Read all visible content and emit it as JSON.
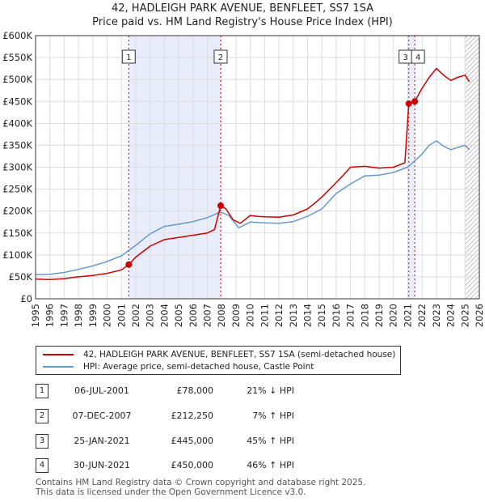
{
  "title_line1": "42, HADLEIGH PARK AVENUE, BENFLEET, SS7 1SA",
  "title_line2": "Price paid vs. HM Land Registry's House Price Index (HPI)",
  "colors": {
    "price_paid": "#cc0000",
    "hpi": "#6699cc",
    "shade": "#e8ecfb",
    "grid": "#dddddd",
    "marker_line": "#cc0000"
  },
  "legend": {
    "price_paid": "42, HADLEIGH PARK AVENUE, BENFLEET, SS7 1SA (semi-detached house)",
    "hpi": "HPI: Average price, semi-detached house, Castle Point"
  },
  "transactions": [
    {
      "num": "1",
      "date": "06-JUL-2001",
      "price": "£78,000",
      "hpi": "21% ↓ HPI"
    },
    {
      "num": "2",
      "date": "07-DEC-2007",
      "price": "£212,250",
      "hpi": "7% ↑ HPI"
    },
    {
      "num": "3",
      "date": "25-JAN-2021",
      "price": "£445,000",
      "hpi": "45% ↑ HPI"
    },
    {
      "num": "4",
      "date": "30-JUN-2021",
      "price": "£450,000",
      "hpi": "46% ↑ HPI"
    }
  ],
  "footer_line1": "Contains HM Land Registry data © Crown copyright and database right 2025.",
  "footer_line2": "This data is licensed under the Open Government Licence v3.0.",
  "chart_data": {
    "type": "line",
    "title": "42, HADLEIGH PARK AVENUE, BENFLEET, SS7 1SA — Price paid vs. HM Land Registry's House Price Index (HPI)",
    "xlim": [
      1995,
      2026
    ],
    "ylim": [
      0,
      600000
    ],
    "x_ticks": [
      1995,
      1996,
      1997,
      1998,
      1999,
      2000,
      2001,
      2002,
      2003,
      2004,
      2005,
      2006,
      2007,
      2008,
      2009,
      2010,
      2011,
      2012,
      2013,
      2014,
      2015,
      2016,
      2017,
      2018,
      2019,
      2020,
      2021,
      2022,
      2023,
      2024,
      2025,
      2026
    ],
    "y_ticks": [
      0,
      50000,
      100000,
      150000,
      200000,
      250000,
      300000,
      350000,
      400000,
      450000,
      500000,
      550000,
      600000
    ],
    "y_tick_labels": [
      "£0",
      "£50K",
      "£100K",
      "£150K",
      "£200K",
      "£250K",
      "£300K",
      "£350K",
      "£400K",
      "£450K",
      "£500K",
      "£550K",
      "£600K"
    ],
    "shaded_ranges": [
      [
        2001.51,
        2007.93
      ],
      [
        2021.07,
        2021.49
      ]
    ],
    "hatched_from": 2025.0,
    "markers": [
      {
        "label": "1",
        "x": 2001.51,
        "y": 78000
      },
      {
        "label": "2",
        "x": 2007.93,
        "y": 212250
      },
      {
        "label": "3",
        "x": 2021.07,
        "y": 445000
      },
      {
        "label": "4",
        "x": 2021.49,
        "y": 450000
      }
    ],
    "series": [
      {
        "name": "42, HADLEIGH PARK AVENUE, BENFLEET, SS7 1SA (semi-detached house)",
        "color": "#cc0000",
        "x": [
          1995,
          1996,
          1997,
          1998,
          1999,
          2000,
          2001,
          2001.51,
          2002,
          2003,
          2004,
          2005,
          2006,
          2007,
          2007.5,
          2007.93,
          2008.3,
          2008.8,
          2009.3,
          2010,
          2010.5,
          2011,
          2012,
          2013,
          2014,
          2014.5,
          2015,
          2016,
          2016.5,
          2017,
          2018,
          2019,
          2020,
          2020.8,
          2021.07,
          2021.49,
          2022,
          2022.5,
          2023,
          2023.5,
          2024,
          2024.5,
          2025,
          2025.3
        ],
        "y": [
          45000,
          44000,
          46000,
          50000,
          53000,
          58000,
          66000,
          78000,
          95000,
          120000,
          135000,
          140000,
          145000,
          150000,
          158000,
          212250,
          205000,
          180000,
          172000,
          190000,
          188000,
          187000,
          186000,
          191000,
          205000,
          218000,
          232000,
          265000,
          282000,
          300000,
          302000,
          298000,
          300000,
          310000,
          445000,
          450000,
          480000,
          505000,
          525000,
          510000,
          498000,
          505000,
          510000,
          495000
        ]
      },
      {
        "name": "HPI: Average price, semi-detached house, Castle Point",
        "color": "#6699cc",
        "x": [
          1995,
          1996,
          1997,
          1998,
          1999,
          2000,
          2001,
          2002,
          2003,
          2004,
          2005,
          2006,
          2007,
          2007.9,
          2008.5,
          2009.2,
          2010,
          2011,
          2012,
          2013,
          2014,
          2015,
          2016,
          2017,
          2018,
          2019,
          2020,
          2021,
          2022,
          2022.5,
          2023,
          2023.5,
          2024,
          2024.5,
          2025,
          2025.3
        ],
        "y": [
          55000,
          56000,
          60000,
          67000,
          75000,
          85000,
          98000,
          122000,
          148000,
          165000,
          170000,
          176000,
          185000,
          198000,
          190000,
          162000,
          175000,
          173000,
          172000,
          176000,
          188000,
          205000,
          240000,
          262000,
          280000,
          282000,
          288000,
          300000,
          330000,
          350000,
          360000,
          348000,
          340000,
          345000,
          350000,
          340000
        ]
      }
    ]
  }
}
